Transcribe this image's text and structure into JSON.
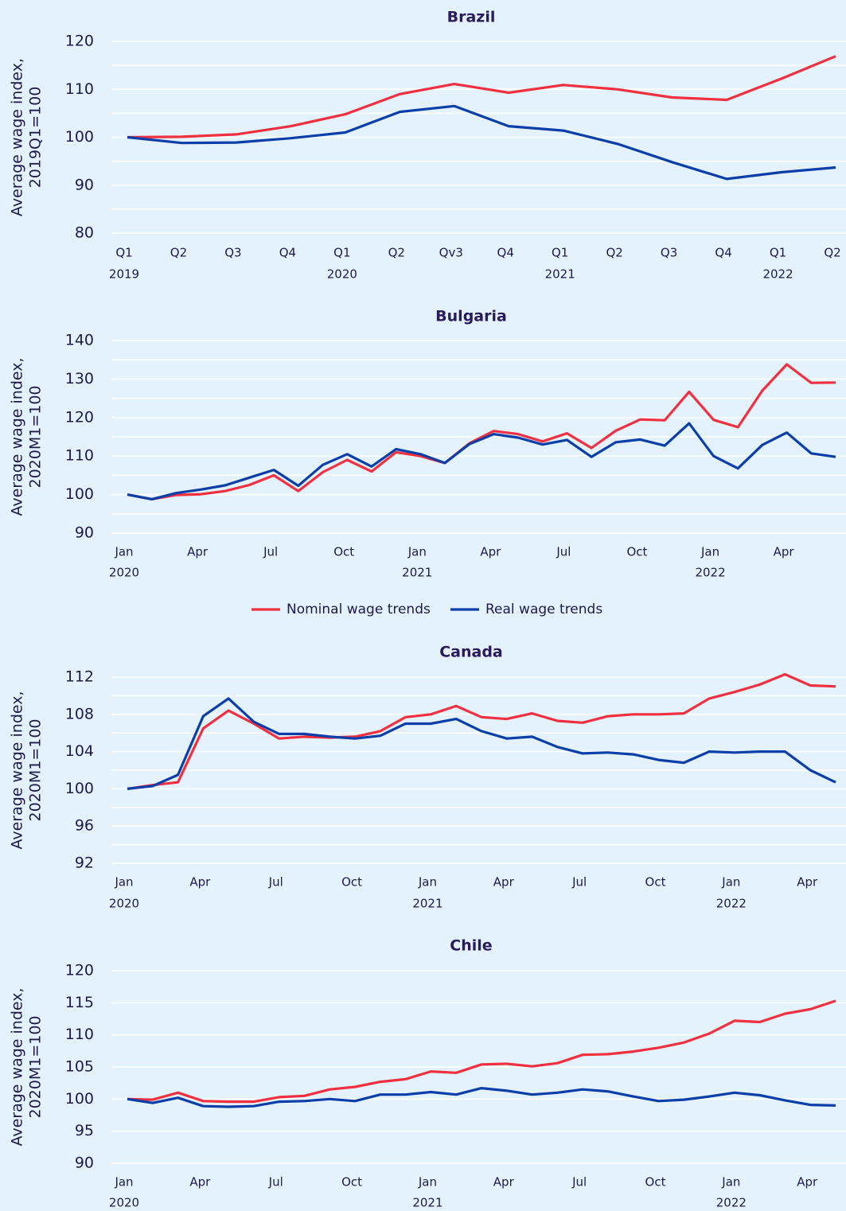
{
  "chart_data": [
    {
      "type": "line",
      "title": "Brazil",
      "ylabel": [
        "Average wage index,",
        "2019Q1=100"
      ],
      "categories": [
        "Q1",
        "Q2",
        "Q3",
        "Q4",
        "Q1",
        "Q2",
        "Qv3",
        "Q4",
        "Q1",
        "Q2",
        "Q3",
        "Q4",
        "Q1",
        "Q2"
      ],
      "x_groups": [
        {
          "label": "2019",
          "start": 0
        },
        {
          "label": "2020",
          "start": 4
        },
        {
          "label": "2021",
          "start": 8
        },
        {
          "label": "2022",
          "start": 12
        }
      ],
      "ylim": [
        80,
        120
      ],
      "yticks": [
        80,
        90,
        100,
        110,
        120
      ],
      "minor_yticks": [
        85,
        95,
        105,
        115
      ],
      "grid": true,
      "series": [
        {
          "color": "#f0303f",
          "values": [
            100,
            100.1,
            100.6,
            102.3,
            104.8,
            109.0,
            111.1,
            109.3,
            110.9,
            110.0,
            108.3,
            107.8,
            112.2,
            116.9
          ]
        },
        {
          "color": "#0b3ea8",
          "values": [
            100,
            98.8,
            98.9,
            99.8,
            101.0,
            105.3,
            106.5,
            102.3,
            101.4,
            98.6,
            94.8,
            91.3,
            92.7,
            93.7
          ]
        }
      ]
    },
    {
      "type": "line",
      "title": "Bulgaria",
      "ylabel": [
        "Average wage index,",
        "2020M1=100"
      ],
      "categories": [
        "Jan",
        null,
        null,
        "Apr",
        null,
        null,
        "Jul",
        null,
        null,
        "Oct",
        null,
        null,
        "Jan",
        null,
        null,
        "Apr",
        null,
        null,
        "Jul",
        null,
        null,
        "Oct",
        null,
        null,
        "Jan",
        null,
        null,
        "Apr",
        null,
        null
      ],
      "x_groups": [
        {
          "label": "2020",
          "start": 0
        },
        {
          "label": "2021",
          "start": 12
        },
        {
          "label": "2022",
          "start": 24
        }
      ],
      "ylim": [
        90,
        140
      ],
      "yticks": [
        90,
        100,
        110,
        120,
        130,
        140
      ],
      "minor_yticks": [
        95,
        105,
        115,
        125,
        135
      ],
      "grid": true,
      "legend": "below",
      "series": [
        {
          "name": "Nominal wage trends",
          "color": "#f0303f",
          "values": [
            100,
            98.8,
            99.9,
            100.1,
            100.9,
            102.5,
            105.0,
            100.9,
            105.8,
            109.0,
            106.0,
            111.0,
            110.0,
            108.2,
            113.3,
            116.5,
            115.7,
            113.8,
            115.9,
            112.1,
            116.6,
            119.5,
            119.3,
            126.7,
            119.4,
            117.5,
            127.0,
            133.8,
            129.0,
            129.1
          ]
        },
        {
          "name": "Real wage trends",
          "color": "#0b3ea8",
          "values": [
            100,
            98.8,
            100.4,
            101.3,
            102.4,
            104.4,
            106.4,
            102.3,
            107.7,
            110.5,
            107.3,
            111.8,
            110.5,
            108.2,
            113.1,
            115.7,
            114.8,
            113.0,
            114.2,
            109.8,
            113.6,
            114.3,
            112.7,
            118.5,
            110.0,
            106.8,
            112.9,
            116.1,
            110.7,
            109.8
          ]
        }
      ]
    },
    {
      "type": "line",
      "title": "Canada",
      "ylabel": [
        "Average wage index,",
        "2020M1=100"
      ],
      "categories": [
        "Jan",
        null,
        null,
        "Apr",
        null,
        null,
        "Jul",
        null,
        null,
        "Oct",
        null,
        null,
        "Jan",
        null,
        null,
        "Apr",
        null,
        null,
        "Jul",
        null,
        null,
        "Oct",
        null,
        null,
        "Jan",
        null,
        null,
        "Apr",
        null
      ],
      "x_groups": [
        {
          "label": "2020",
          "start": 0
        },
        {
          "label": "2021",
          "start": 12
        },
        {
          "label": "2022",
          "start": 24
        }
      ],
      "ylim": [
        92,
        112
      ],
      "yticks": [
        92,
        96,
        100,
        104,
        108,
        112
      ],
      "minor_yticks": [
        94,
        98,
        102,
        106,
        110
      ],
      "grid": true,
      "series": [
        {
          "color": "#f0303f",
          "values": [
            100,
            100.4,
            100.7,
            106.5,
            108.4,
            107.0,
            105.4,
            105.6,
            105.5,
            105.6,
            106.2,
            107.7,
            108.0,
            108.9,
            107.7,
            107.5,
            108.1,
            107.3,
            107.1,
            107.8,
            108.0,
            108.0,
            108.1,
            109.7,
            110.4,
            111.2,
            112.3,
            111.1,
            111.0
          ]
        },
        {
          "color": "#0b3ea8",
          "values": [
            100,
            100.3,
            101.5,
            107.8,
            109.7,
            107.2,
            105.9,
            105.9,
            105.6,
            105.4,
            105.7,
            107.0,
            107.0,
            107.5,
            106.2,
            105.4,
            105.6,
            104.5,
            103.8,
            103.9,
            103.7,
            103.1,
            102.8,
            104.0,
            103.9,
            104.0,
            104.0,
            102.0,
            100.7
          ]
        }
      ]
    },
    {
      "type": "line",
      "title": "Chile",
      "ylabel": [
        "Average wage index,",
        "2020M1=100"
      ],
      "categories": [
        "Jan",
        null,
        null,
        "Apr",
        null,
        null,
        "Jul",
        null,
        null,
        "Oct",
        null,
        null,
        "Jan",
        null,
        null,
        "Apr",
        null,
        null,
        "Jul",
        null,
        null,
        "Oct",
        null,
        null,
        "Jan",
        null,
        null,
        "Apr",
        null
      ],
      "x_groups": [
        {
          "label": "2020",
          "start": 0
        },
        {
          "label": "2021",
          "start": 12
        },
        {
          "label": "2022",
          "start": 24
        }
      ],
      "ylim": [
        90,
        120
      ],
      "yticks": [
        90,
        95,
        100,
        105,
        110,
        115,
        120
      ],
      "grid": true,
      "series": [
        {
          "color": "#f0303f",
          "values": [
            100,
            99.9,
            101.0,
            99.7,
            99.6,
            99.6,
            100.3,
            100.5,
            101.5,
            101.9,
            102.7,
            103.1,
            104.3,
            104.1,
            105.4,
            105.5,
            105.1,
            105.6,
            106.9,
            107.0,
            107.4,
            108.0,
            108.8,
            110.2,
            112.2,
            112.0,
            113.3,
            114.0,
            115.3
          ]
        },
        {
          "color": "#0b3ea8",
          "values": [
            100,
            99.4,
            100.2,
            98.9,
            98.8,
            98.9,
            99.6,
            99.7,
            100.0,
            99.7,
            100.7,
            100.7,
            101.1,
            100.7,
            101.7,
            101.3,
            100.7,
            101.0,
            101.5,
            101.2,
            100.4,
            99.7,
            99.9,
            100.4,
            101.0,
            100.6,
            99.8,
            99.1,
            99.0
          ]
        }
      ]
    }
  ]
}
